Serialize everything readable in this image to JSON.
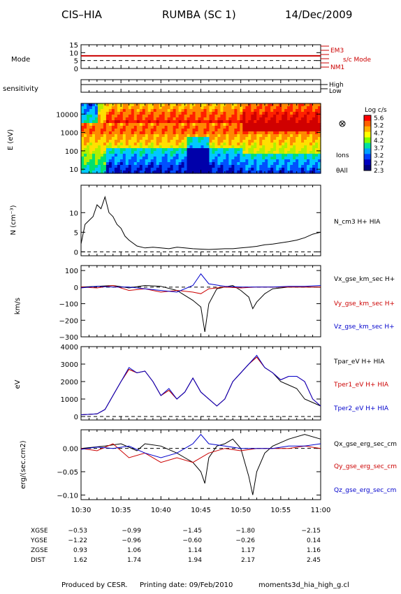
{
  "header": {
    "instrument": "CIS–HIA",
    "mission": "RUMBA (SC 1)",
    "date": "14/Dec/2009"
  },
  "footer": {
    "produced_by": "Produced by CESR.",
    "printing_date": "Printing date: 09/Feb/2010",
    "filename": "moments3d_hia_high_g.cl"
  },
  "colors": {
    "black": "#000000",
    "red": "#cc0000",
    "blue": "#0000cc",
    "label_red": "#cc0000",
    "label_blue": "#0000cc"
  },
  "time_axis": {
    "start": "10:30",
    "end": "11:00",
    "tick_labels": [
      "10:30",
      "10:35",
      "10:40",
      "10:45",
      "10:50",
      "10:55",
      "11:00"
    ]
  },
  "orbit_table": {
    "rows": [
      {
        "label": "XGSE",
        "values": [
          "−0.53",
          "−0.99",
          "−1.45",
          "−1.80",
          "−2.15"
        ]
      },
      {
        "label": "YGSE",
        "values": [
          "−1.22",
          "−0.96",
          "−0.60",
          "−0.26",
          "0.14"
        ]
      },
      {
        "label": "ZGSE",
        "values": [
          "0.93",
          "1.06",
          "1.14",
          "1.17",
          "1.16"
        ]
      },
      {
        "label": "DIST",
        "values": [
          "1.62",
          "1.74",
          "1.94",
          "2.17",
          "2.45"
        ]
      }
    ]
  },
  "chart_data": [
    {
      "type": "line",
      "panel": "mode",
      "ylabel": "Mode",
      "yticks": [
        "15",
        "10",
        "5",
        "0"
      ],
      "ylim": [
        0,
        15
      ],
      "series": [
        {
          "name": "s/c Mode",
          "values": [
            8,
            8
          ]
        }
      ],
      "right_labels": [
        "EM3",
        "s/c Mode",
        "NM1"
      ]
    },
    {
      "type": "line",
      "panel": "sensitivity",
      "ylabel": "sensitivity",
      "right_labels": [
        "High",
        "Low"
      ]
    },
    {
      "type": "heatmap",
      "panel": "spectrogram",
      "ylabel": "E (eV)",
      "yticks": [
        "10000",
        "1000",
        "100",
        "10"
      ],
      "scale": "log",
      "ylim": [
        6,
        38000
      ],
      "colorbar": {
        "title": "Log c/s",
        "ticks": [
          "5.6",
          "5.2",
          "4.7",
          "4.2",
          "3.7",
          "3.2",
          "2.7",
          "2.3"
        ]
      },
      "side_labels": [
        "Ions",
        "θAll"
      ]
    },
    {
      "type": "line",
      "panel": "density",
      "ylabel": "N (cm⁻³)",
      "yticks": [
        "10",
        "5",
        "0"
      ],
      "ylim": [
        -1,
        17
      ],
      "series": [
        {
          "name": "N_cm3  H+ HIA",
          "t": [
            0,
            0.5,
            1,
            1.5,
            2,
            2.5,
            3,
            3.5,
            4,
            4.5,
            5,
            5.5,
            6,
            7,
            8,
            9,
            10,
            11,
            12,
            13,
            14,
            15,
            16,
            17,
            18,
            19,
            20,
            21,
            22,
            23,
            24,
            25,
            26,
            27,
            28,
            29,
            30
          ],
          "values": [
            2,
            7,
            8,
            9,
            12,
            11,
            14,
            10,
            9,
            7,
            6,
            4,
            3,
            1.5,
            1,
            1.2,
            1,
            0.8,
            1.2,
            1,
            0.8,
            0.7,
            0.6,
            0.7,
            0.8,
            0.8,
            1,
            1.2,
            1.4,
            1.8,
            2,
            2.3,
            2.6,
            3,
            3.6,
            4.5,
            5
          ]
        }
      ]
    },
    {
      "type": "line",
      "panel": "velocity",
      "ylabel": "km/s",
      "yticks": [
        "100",
        "0",
        "−100",
        "−200",
        "−300"
      ],
      "ylim": [
        -300,
        130
      ],
      "series": [
        {
          "name": "Vx_gse_km_sec  H+",
          "color": "#000000",
          "t": [
            0,
            2,
            4,
            6,
            8,
            10,
            12,
            13,
            14,
            15,
            15.5,
            16,
            17,
            18,
            19,
            20,
            21,
            21.5,
            22,
            23,
            24,
            26,
            28,
            30
          ],
          "values": [
            0,
            5,
            10,
            -5,
            10,
            5,
            -20,
            -50,
            -80,
            -120,
            -270,
            -100,
            -10,
            0,
            10,
            -20,
            -60,
            -130,
            -90,
            -40,
            -10,
            0,
            0,
            0
          ]
        },
        {
          "name": "Vy_gse_km_sec  H+",
          "color": "#cc0000",
          "t": [
            0,
            2,
            4,
            6,
            8,
            10,
            12,
            14,
            15,
            16,
            18,
            20,
            22,
            24,
            26,
            28,
            30
          ],
          "values": [
            0,
            -5,
            10,
            -20,
            -10,
            -30,
            -20,
            -30,
            -40,
            -10,
            0,
            -5,
            0,
            0,
            0,
            0,
            0
          ]
        },
        {
          "name": "Vz_gse_km_sec  H+",
          "color": "#0000cc",
          "t": [
            0,
            2,
            4,
            6,
            8,
            10,
            12,
            14,
            15,
            16,
            18,
            20,
            22,
            24,
            26,
            28,
            30
          ],
          "values": [
            -5,
            5,
            0,
            0,
            -10,
            -20,
            -30,
            10,
            80,
            20,
            5,
            0,
            0,
            0,
            5,
            5,
            10
          ]
        }
      ]
    },
    {
      "type": "line",
      "panel": "temperature",
      "ylabel": "eV",
      "yticks": [
        "4000",
        "3000",
        "2000",
        "1000",
        "0"
      ],
      "ylim": [
        -200,
        4000
      ],
      "series": [
        {
          "name": "Tpar_eV  H+ HIA",
          "color": "#000000",
          "t": [
            0,
            2,
            3,
            4,
            5,
            6,
            7,
            8,
            9,
            10,
            11,
            12,
            13,
            14,
            15,
            16,
            17,
            18,
            19,
            20,
            21,
            22,
            23,
            24,
            25,
            26,
            27,
            28,
            29,
            30
          ],
          "values": [
            100,
            150,
            400,
            1200,
            2000,
            2700,
            2500,
            2600,
            2000,
            1200,
            1500,
            1000,
            1400,
            2200,
            1400,
            1000,
            600,
            1000,
            2000,
            2500,
            3000,
            3400,
            2800,
            2500,
            2000,
            1800,
            1600,
            1000,
            800,
            600
          ]
        },
        {
          "name": "Tper1_eV  H+ HIA",
          "color": "#cc0000",
          "t": [
            0,
            2,
            3,
            4,
            5,
            6,
            7,
            8,
            9,
            10,
            11,
            12,
            13,
            14,
            15,
            16,
            17,
            18,
            19,
            20,
            21,
            22,
            23,
            24,
            25,
            26,
            27,
            28,
            29,
            30
          ],
          "values": [
            100,
            150,
            400,
            1200,
            2000,
            2700,
            2500,
            2600,
            2000,
            1200,
            1500,
            1000,
            1400,
            2200,
            1400,
            1000,
            600,
            1000,
            2000,
            2500,
            3000,
            3400,
            2800,
            2500,
            2100,
            2300,
            2300,
            2000,
            1000,
            600
          ]
        },
        {
          "name": "Tper2_eV  H+ HIA",
          "color": "#0000cc",
          "t": [
            0,
            2,
            3,
            4,
            5,
            6,
            7,
            8,
            9,
            10,
            11,
            12,
            13,
            14,
            15,
            16,
            17,
            18,
            19,
            20,
            21,
            22,
            23,
            24,
            25,
            26,
            27,
            28,
            29,
            30
          ],
          "values": [
            100,
            150,
            400,
            1200,
            2000,
            2800,
            2500,
            2600,
            2000,
            1200,
            1600,
            1000,
            1400,
            2200,
            1400,
            1000,
            600,
            1000,
            2000,
            2500,
            3000,
            3500,
            2800,
            2500,
            2100,
            2300,
            2300,
            2000,
            1000,
            600
          ]
        }
      ]
    },
    {
      "type": "line",
      "panel": "heat_flux",
      "ylabel": "erg/(sec.cm2)",
      "yticks": [
        "0.00",
        "−0.05",
        "−0.10"
      ],
      "ylim": [
        -0.11,
        0.04
      ],
      "series": [
        {
          "name": "Qx_gse_erg_sec_cm",
          "color": "#000000",
          "t": [
            0,
            3,
            5,
            7,
            8,
            10,
            12,
            13,
            14,
            15,
            15.5,
            16,
            17,
            18,
            19,
            20,
            21,
            21.5,
            22,
            23,
            24,
            26,
            28,
            30
          ],
          "values": [
            0,
            0.005,
            0.01,
            -0.005,
            0.01,
            0.005,
            -0.01,
            -0.02,
            -0.03,
            -0.05,
            -0.075,
            -0.02,
            0.005,
            0.01,
            0.02,
            0,
            -0.06,
            -0.1,
            -0.05,
            -0.01,
            0.005,
            0.02,
            0.03,
            0.02
          ]
        },
        {
          "name": "Qy_gse_erg_sec_cm",
          "color": "#cc0000",
          "t": [
            0,
            2,
            4,
            6,
            8,
            10,
            12,
            14,
            16,
            18,
            20,
            22,
            24,
            26,
            28,
            30
          ],
          "values": [
            0,
            -0.005,
            0.01,
            -0.02,
            -0.01,
            -0.03,
            -0.02,
            -0.03,
            -0.01,
            0,
            -0.005,
            0,
            0,
            0,
            0.005,
            0
          ]
        },
        {
          "name": "Qz_gse_erg_sec_cm",
          "color": "#0000cc",
          "t": [
            0,
            2,
            4,
            6,
            8,
            10,
            12,
            14,
            15,
            16,
            18,
            20,
            22,
            24,
            26,
            28,
            30
          ],
          "values": [
            -0.002,
            0.003,
            0,
            0.005,
            -0.01,
            -0.02,
            -0.01,
            0.01,
            0.03,
            0.01,
            0.005,
            0,
            0,
            0,
            0.005,
            0.005,
            0.01
          ]
        }
      ]
    }
  ]
}
